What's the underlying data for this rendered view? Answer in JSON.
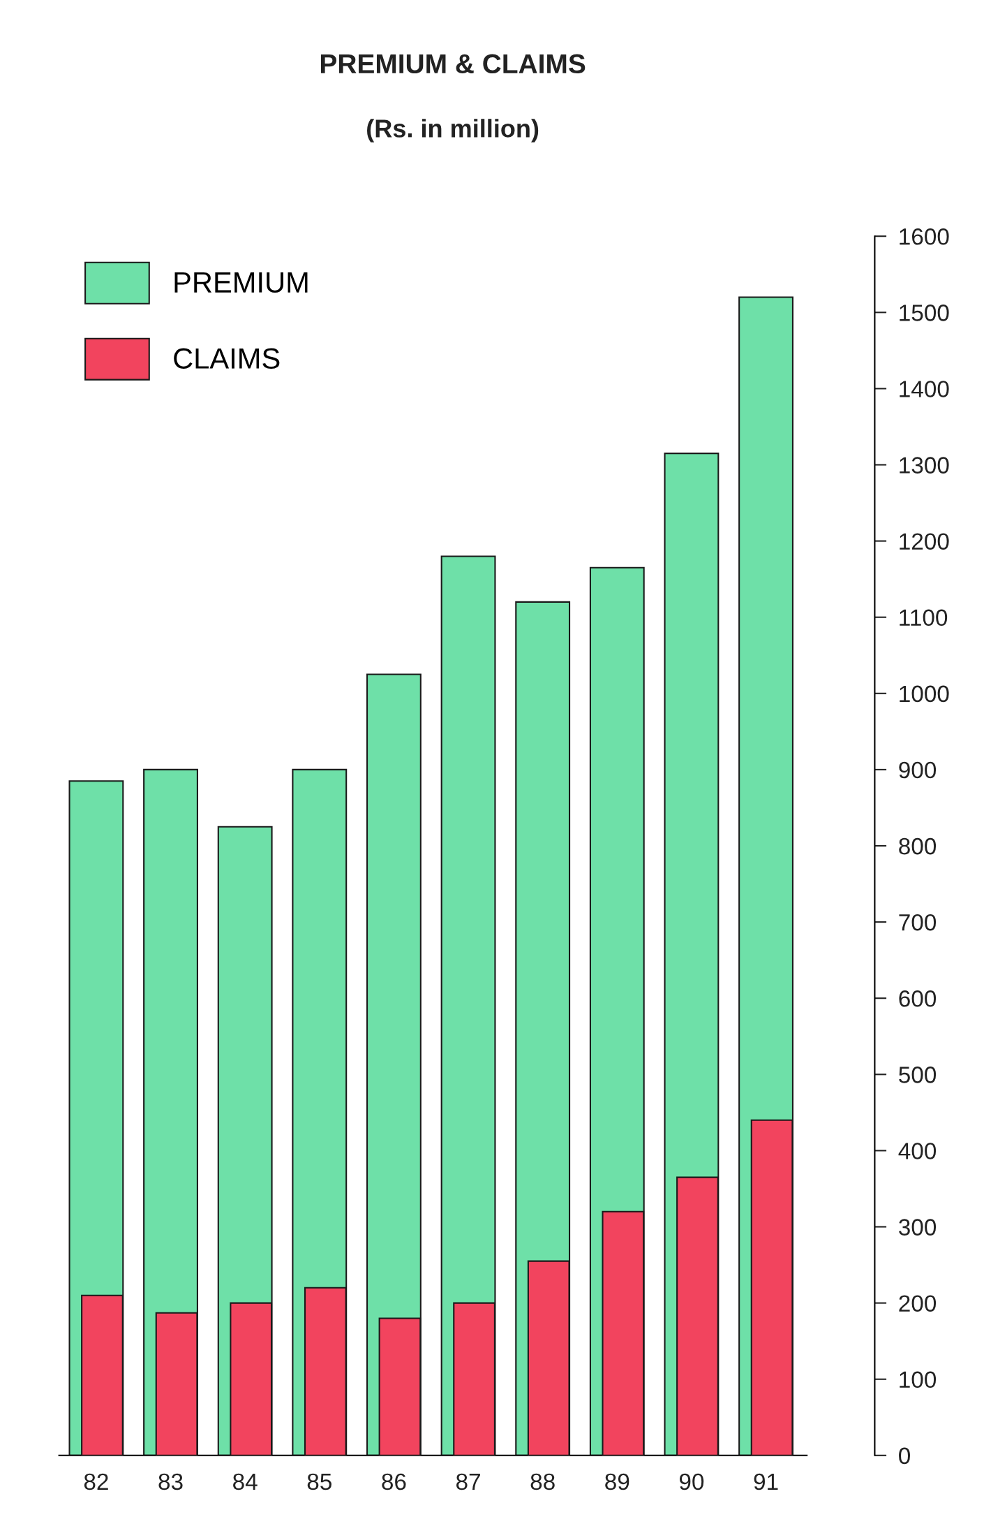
{
  "chart_data": {
    "type": "bar",
    "title": "PREMIUM & CLAIMS",
    "subtitle": "(Rs. in million)",
    "categories": [
      "82",
      "83",
      "84",
      "85",
      "86",
      "87",
      "88",
      "89",
      "90",
      "91"
    ],
    "series": [
      {
        "name": "PREMIUM",
        "color": "#6ee0a8",
        "values": [
          885,
          900,
          825,
          900,
          1025,
          1180,
          1120,
          1165,
          1315,
          1520
        ]
      },
      {
        "name": "CLAIMS",
        "color": "#f2445e",
        "values": [
          210,
          187,
          200,
          220,
          180,
          200,
          255,
          320,
          365,
          440
        ]
      }
    ],
    "ylim": [
      0,
      1600
    ],
    "yticks": [
      0,
      100,
      200,
      300,
      400,
      500,
      600,
      700,
      800,
      900,
      1000,
      1100,
      1200,
      1300,
      1400,
      1500,
      1600
    ],
    "grid": false,
    "legend": "top left"
  }
}
